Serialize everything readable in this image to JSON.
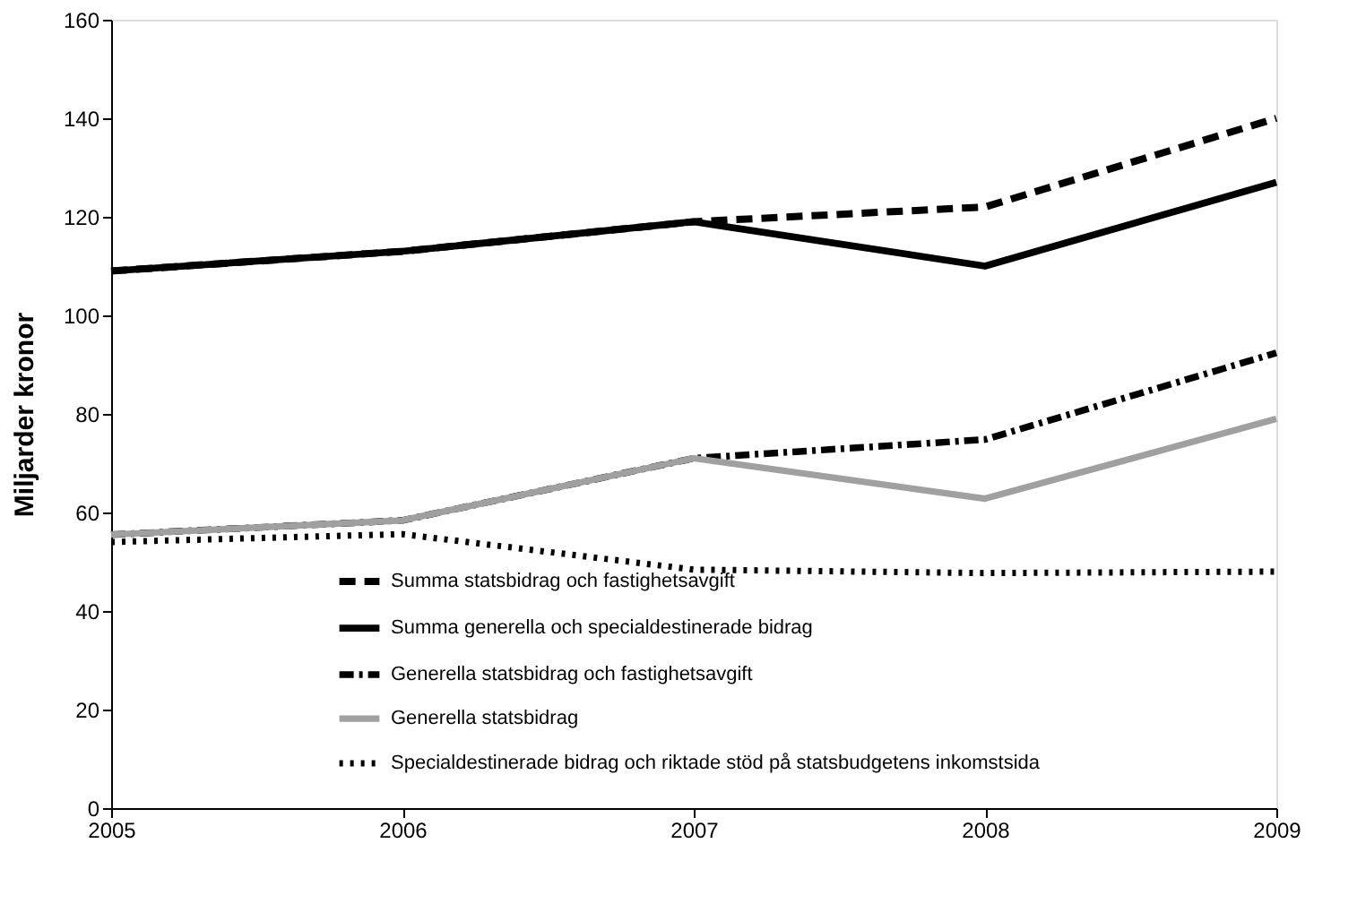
{
  "chart_data": {
    "type": "line",
    "ylabel": "Miljarder kronor",
    "x": [
      2005,
      2006,
      2007,
      2008,
      2009
    ],
    "series": [
      {
        "name": "Summa statsbidrag och fastighetsavgift",
        "color": "#000000",
        "line_style": "dashed",
        "values": [
          109,
          113,
          119,
          122,
          140
        ]
      },
      {
        "name": "Summa generella och specialdestinerade bidrag",
        "color": "#000000",
        "line_style": "solid",
        "values": [
          109,
          113,
          119,
          110,
          127
        ]
      },
      {
        "name": "Generella statsbidrag och fastighetsavgift",
        "color": "#000000",
        "line_style": "dashdot",
        "values": [
          55.5,
          58.4,
          71,
          74.8,
          92.4
        ]
      },
      {
        "name": "Generella statsbidrag",
        "color": "#a0a0a0",
        "line_style": "solid",
        "values": [
          55.5,
          58.4,
          71,
          62.8,
          79
        ]
      },
      {
        "name": "Specialdestinerade bidrag och riktade stöd på statsbudgetens inkomstsida",
        "color": "#000000",
        "line_style": "dotted",
        "values": [
          54,
          55.6,
          48.4,
          47.7,
          48
        ]
      }
    ],
    "xlim": [
      2005,
      2009
    ],
    "xticks": [
      2005,
      2006,
      2007,
      2008,
      2009
    ],
    "ylim": [
      0,
      160
    ],
    "yticks": [
      0,
      20,
      40,
      60,
      80,
      100,
      120,
      140,
      160
    ],
    "grid": false,
    "legend": "bottom left",
    "marker": "none"
  }
}
